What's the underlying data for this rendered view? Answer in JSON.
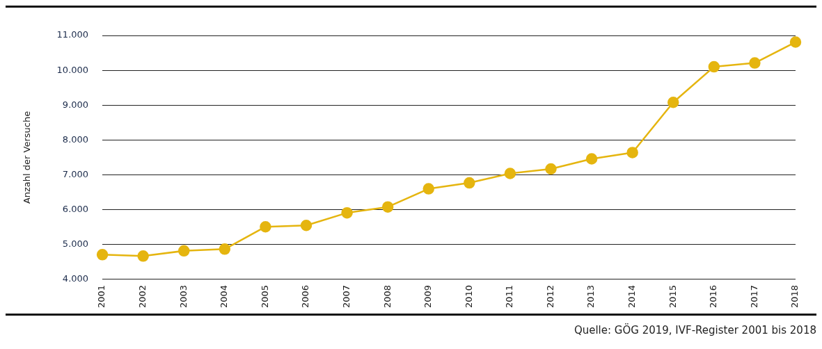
{
  "chart_data": {
    "type": "line",
    "ylabel": "Anzahl der Versuche",
    "categories": [
      "2001",
      "2002",
      "2003",
      "2004",
      "2005",
      "2006",
      "2007",
      "2008",
      "2009",
      "2010",
      "2011",
      "2012",
      "2013",
      "2014",
      "2015",
      "2016",
      "2017",
      "2018"
    ],
    "series": [
      {
        "color": "#e5b50f",
        "values": [
          4710,
          4670,
          4820,
          4870,
          5510,
          5550,
          5910,
          6080,
          6600,
          6770,
          7040,
          7170,
          7460,
          7640,
          9080,
          10100,
          10210,
          10810
        ]
      }
    ],
    "ylim": [
      4000,
      11000
    ],
    "yticks": [
      {
        "value": 4000,
        "label": "4.000"
      },
      {
        "value": 5000,
        "label": "5.000"
      },
      {
        "value": 6000,
        "label": "6.000"
      },
      {
        "value": 7000,
        "label": "7.000"
      },
      {
        "value": 8000,
        "label": "8.000"
      },
      {
        "value": 9000,
        "label": "9.000"
      },
      {
        "value": 10000,
        "label": "10.000"
      },
      {
        "value": 11000,
        "label": "11.000"
      }
    ],
    "grid": "y",
    "legend": false,
    "marker": "circle",
    "line_style": "solid",
    "annotations": [
      "Quelle: GÖG 2019, IVF-Register 2001 bis 2018"
    ]
  }
}
